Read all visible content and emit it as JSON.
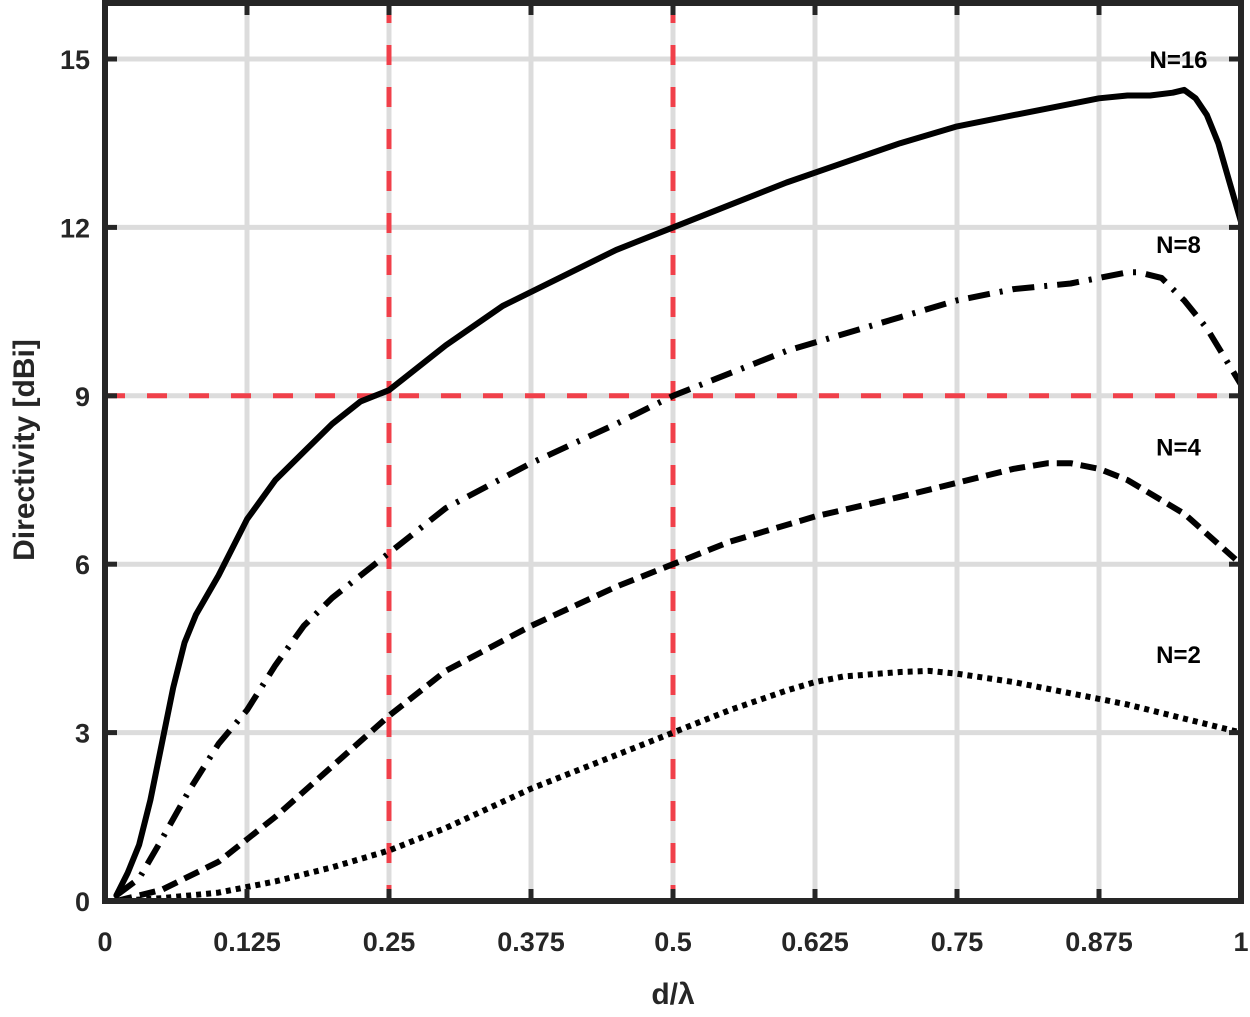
{
  "chart_data": {
    "type": "line",
    "title": "",
    "xlabel": "d/λ",
    "ylabel": "Directivity [dBi]",
    "xlim": [
      0,
      1
    ],
    "ylim": [
      0,
      16
    ],
    "xticks": [
      0,
      0.125,
      0.25,
      0.375,
      0.5,
      0.625,
      0.75,
      0.875,
      1
    ],
    "xtick_labels": [
      "0",
      "0.125",
      "0.25",
      "0.375",
      "0.5",
      "0.625",
      "0.75",
      "0.875",
      "1"
    ],
    "yticks": [
      0,
      3,
      6,
      9,
      12,
      15
    ],
    "ytick_labels": [
      "0",
      "3",
      "6",
      "9",
      "12",
      "15"
    ],
    "grid": true,
    "legend": "inline labels near right end of each curve",
    "reference_lines": [
      {
        "orientation": "vertical",
        "value": 0.25,
        "color": "#f0404a",
        "style": "dashed"
      },
      {
        "orientation": "vertical",
        "value": 0.5,
        "color": "#f0404a",
        "style": "dashed"
      },
      {
        "orientation": "horizontal",
        "value": 9,
        "color": "#f0404a",
        "style": "dashed"
      }
    ],
    "series": [
      {
        "name": "N=16",
        "style": "solid",
        "label_pos": [
          0.945,
          15.0
        ],
        "x": [
          0.01,
          0.02,
          0.03,
          0.04,
          0.05,
          0.06,
          0.07,
          0.08,
          0.1,
          0.125,
          0.15,
          0.175,
          0.2,
          0.225,
          0.25,
          0.3,
          0.35,
          0.4,
          0.45,
          0.5,
          0.55,
          0.6,
          0.65,
          0.7,
          0.75,
          0.8,
          0.85,
          0.875,
          0.9,
          0.92,
          0.94,
          0.95,
          0.96,
          0.97,
          0.98,
          0.99,
          1.0
        ],
        "y": [
          0.1,
          0.5,
          1.0,
          1.8,
          2.8,
          3.8,
          4.6,
          5.1,
          5.8,
          6.8,
          7.5,
          8.0,
          8.5,
          8.9,
          9.1,
          9.9,
          10.6,
          11.1,
          11.6,
          12.0,
          12.4,
          12.8,
          13.15,
          13.5,
          13.8,
          14.0,
          14.2,
          14.3,
          14.35,
          14.35,
          14.4,
          14.45,
          14.3,
          14.0,
          13.5,
          12.8,
          12.1
        ]
      },
      {
        "name": "N=8",
        "style": "dash-dot",
        "label_pos": [
          0.945,
          11.7
        ],
        "x": [
          0.01,
          0.03,
          0.05,
          0.075,
          0.1,
          0.125,
          0.15,
          0.175,
          0.2,
          0.25,
          0.3,
          0.375,
          0.45,
          0.5,
          0.55,
          0.6,
          0.625,
          0.7,
          0.75,
          0.8,
          0.85,
          0.875,
          0.9,
          0.91,
          0.93,
          0.95,
          0.97,
          0.985,
          1.0
        ],
        "y": [
          0.1,
          0.4,
          1.1,
          2.0,
          2.8,
          3.4,
          4.2,
          4.9,
          5.4,
          6.2,
          7.0,
          7.8,
          8.5,
          9.0,
          9.4,
          9.8,
          9.95,
          10.4,
          10.7,
          10.9,
          11.0,
          11.1,
          11.2,
          11.2,
          11.1,
          10.7,
          10.2,
          9.7,
          9.2
        ]
      },
      {
        "name": "N=4",
        "style": "dashed",
        "label_pos": [
          0.945,
          8.1
        ],
        "x": [
          0.01,
          0.05,
          0.1,
          0.125,
          0.15,
          0.2,
          0.25,
          0.3,
          0.375,
          0.45,
          0.5,
          0.55,
          0.625,
          0.7,
          0.75,
          0.8,
          0.83,
          0.85,
          0.875,
          0.9,
          0.95,
          1.0
        ],
        "y": [
          0.0,
          0.2,
          0.7,
          1.1,
          1.5,
          2.4,
          3.3,
          4.1,
          4.9,
          5.6,
          6.0,
          6.4,
          6.85,
          7.2,
          7.45,
          7.7,
          7.8,
          7.8,
          7.7,
          7.5,
          6.9,
          6.0
        ]
      },
      {
        "name": "N=2",
        "style": "dotted",
        "label_pos": [
          0.945,
          4.4
        ],
        "x": [
          0.01,
          0.05,
          0.1,
          0.125,
          0.15,
          0.2,
          0.25,
          0.3,
          0.375,
          0.45,
          0.5,
          0.55,
          0.6,
          0.625,
          0.65,
          0.7,
          0.725,
          0.75,
          0.8,
          0.85,
          0.875,
          0.9,
          0.95,
          1.0
        ],
        "y": [
          0.0,
          0.05,
          0.15,
          0.25,
          0.35,
          0.6,
          0.9,
          1.3,
          2.0,
          2.6,
          3.0,
          3.4,
          3.75,
          3.9,
          4.0,
          4.08,
          4.1,
          4.05,
          3.9,
          3.7,
          3.6,
          3.5,
          3.25,
          3.0
        ]
      }
    ]
  },
  "colors": {
    "axis": "#262626",
    "grid": "#dcdcdc",
    "reference": "#f0404a",
    "series": "#000000",
    "background": "#ffffff"
  }
}
